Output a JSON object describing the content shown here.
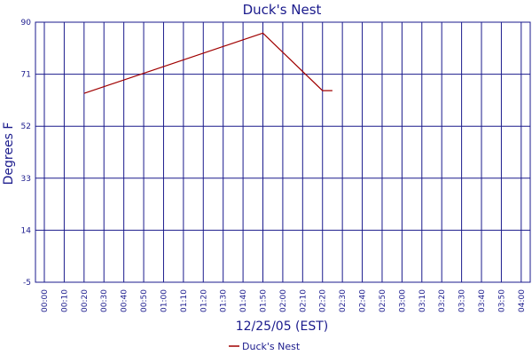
{
  "chart_data": {
    "type": "line",
    "title": "Duck's Nest",
    "xlabel": "12/25/05 (EST)",
    "ylabel": "Degrees F",
    "ylim": [
      -5,
      90
    ],
    "yticks": [
      90,
      71,
      52,
      33,
      14,
      -5
    ],
    "xticks": [
      "00:00",
      "00:10",
      "00:20",
      "00:30",
      "00:40",
      "00:50",
      "01:00",
      "01:10",
      "01:20",
      "01:30",
      "01:40",
      "01:50",
      "02:00",
      "02:10",
      "02:20",
      "02:30",
      "02:40",
      "02:50",
      "03:00",
      "03:10",
      "03:20",
      "03:30",
      "03:40",
      "03:50",
      "04:00"
    ],
    "grid": true,
    "legend_position": "bottom-center",
    "series": [
      {
        "name": "Duck's Nest",
        "color": "#a00000",
        "x": [
          "00:20",
          "01:50",
          "02:20",
          "02:25"
        ],
        "y": [
          64,
          86,
          65,
          65
        ]
      }
    ],
    "colors": {
      "grid": "#1a1a8c",
      "text": "#1a1a8c",
      "background": "#ffffff"
    }
  }
}
